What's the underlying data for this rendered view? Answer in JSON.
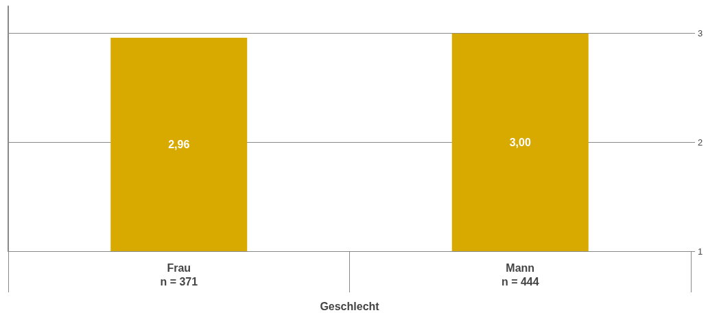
{
  "chart_data": {
    "type": "bar",
    "xlabel": "Geschlecht",
    "categories": [
      "Frau\nn = 371",
      "Mann\nn = 444"
    ],
    "series": [
      {
        "color": "#d8aa00",
        "values": [
          2.96,
          3.0
        ],
        "value_labels": [
          "2,96",
          "3,00"
        ]
      }
    ],
    "ylim": [
      1,
      3.25
    ],
    "yticks": [
      1,
      2,
      3
    ],
    "grid": "y"
  }
}
